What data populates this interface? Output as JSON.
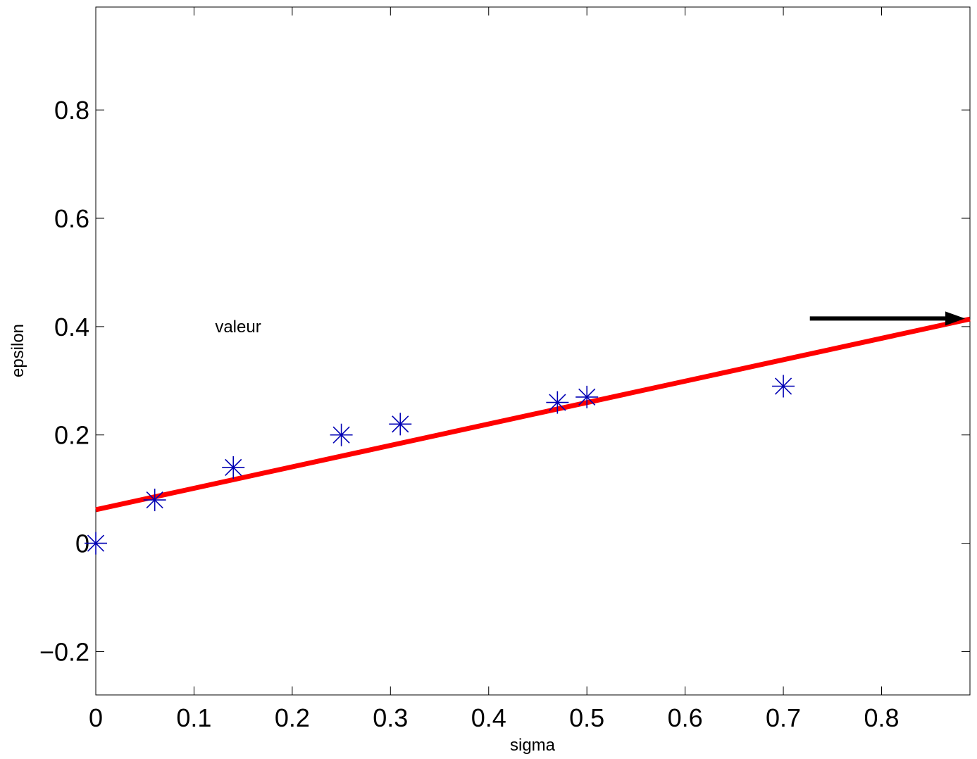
{
  "chart_data": {
    "type": "scatter",
    "xlabel": "sigma",
    "ylabel": "epsilon",
    "xlim": [
      0,
      0.89
    ],
    "ylim": [
      -0.28,
      0.99
    ],
    "xticks": [
      "0",
      "0.1",
      "0.2",
      "0.3",
      "0.4",
      "0.5",
      "0.6",
      "0.7",
      "0.8"
    ],
    "yticks": [
      "−0.2",
      "0",
      "0.2",
      "0.4",
      "0.6",
      "0.8"
    ],
    "grid": false,
    "series": [
      {
        "type": "scatter",
        "marker": "asterisk",
        "color": "#0000b4",
        "x": [
          0,
          0.06,
          0.14,
          0.25,
          0.31,
          0.47,
          0.5,
          0.7
        ],
        "y": [
          0,
          0.08,
          0.14,
          0.2,
          0.22,
          0.26,
          0.27,
          0.29
        ]
      },
      {
        "type": "line",
        "color": "#ff0000",
        "x": [
          0,
          0.89
        ],
        "y": [
          0.062,
          0.414
        ]
      }
    ],
    "annotations": [
      {
        "text": "valeur",
        "x": 0.12,
        "y": 0.4
      }
    ],
    "arrow": {
      "color": "#000000",
      "x_start": 0.727,
      "y_start": 0.415,
      "x_end": 0.885,
      "y_end": 0.415
    }
  }
}
